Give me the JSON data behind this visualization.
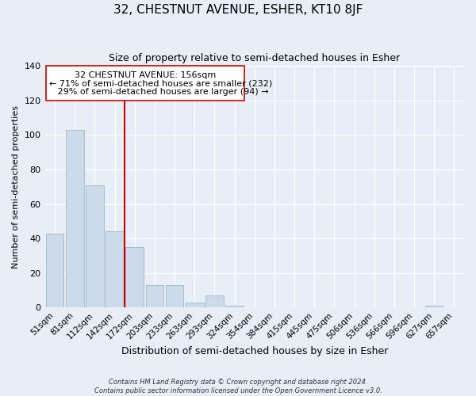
{
  "title": "32, CHESTNUT AVENUE, ESHER, KT10 8JF",
  "subtitle": "Size of property relative to semi-detached houses in Esher",
  "xlabel": "Distribution of semi-detached houses by size in Esher",
  "ylabel": "Number of semi-detached properties",
  "bar_labels": [
    "51sqm",
    "81sqm",
    "112sqm",
    "142sqm",
    "172sqm",
    "203sqm",
    "233sqm",
    "263sqm",
    "293sqm",
    "324sqm",
    "354sqm",
    "384sqm",
    "415sqm",
    "445sqm",
    "475sqm",
    "506sqm",
    "536sqm",
    "566sqm",
    "596sqm",
    "627sqm",
    "657sqm"
  ],
  "bar_values": [
    43,
    103,
    71,
    44,
    35,
    13,
    13,
    3,
    7,
    1,
    0,
    0,
    0,
    0,
    0,
    0,
    0,
    0,
    0,
    1,
    0
  ],
  "bar_color": "#ccdaea",
  "bar_edgecolor": "#aabccc",
  "vline_x": 3.5,
  "vline_color": "#cc0000",
  "annotation_line1": "32 CHESTNUT AVENUE: 156sqm",
  "annotation_line2": "← 71% of semi-detached houses are smaller (232)",
  "annotation_line3": "   29% of semi-detached houses are larger (94) →",
  "annotation_box_edgecolor": "#cc0000",
  "annotation_box_facecolor": "#ffffff",
  "ylim": [
    0,
    140
  ],
  "yticks": [
    0,
    20,
    40,
    60,
    80,
    100,
    120,
    140
  ],
  "footer_line1": "Contains HM Land Registry data © Crown copyright and database right 2024.",
  "footer_line2": "Contains public sector information licensed under the Open Government Licence v3.0.",
  "background_color": "#e8eef8",
  "plot_bg_color": "#e8eef8",
  "grid_color": "#ffffff",
  "title_fontsize": 11,
  "subtitle_fontsize": 9,
  "ylabel_fontsize": 8,
  "xlabel_fontsize": 9,
  "tick_fontsize": 7.5,
  "annotation_fontsize": 8,
  "footer_fontsize": 6
}
